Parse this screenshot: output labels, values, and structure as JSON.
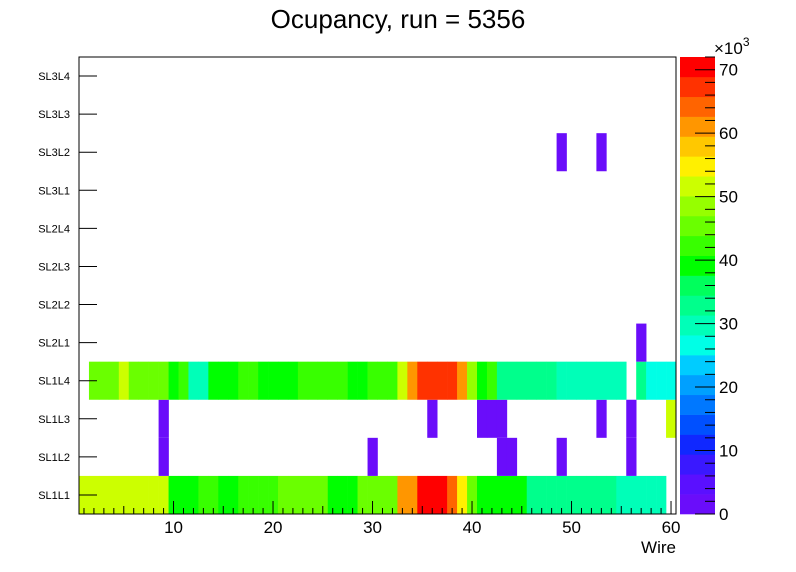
{
  "chart_data": {
    "type": "heatmap",
    "title": "Ocupancy, run = 5356",
    "xlabel": "Wire",
    "ylabel": "",
    "xlim": [
      0.5,
      60.5
    ],
    "xticks": [
      "10",
      "20",
      "30",
      "40",
      "50",
      "60"
    ],
    "xtick_values": [
      10,
      20,
      30,
      40,
      50,
      60
    ],
    "y_categories": [
      "SL1L1",
      "SL1L2",
      "SL1L3",
      "SL1L4",
      "SL2L1",
      "SL2L2",
      "SL2L3",
      "SL2L4",
      "SL3L1",
      "SL3L2",
      "SL3L3",
      "SL3L4"
    ],
    "zlim": [
      0,
      72000
    ],
    "zticks": [
      "0",
      "10",
      "20",
      "30",
      "40",
      "50",
      "60",
      "70"
    ],
    "ztick_values": [
      0,
      10000,
      20000,
      30000,
      40000,
      50000,
      60000,
      70000
    ],
    "z_exponent_base": "×10",
    "z_exponent_power": "3",
    "palette": [
      "#6a0dfa",
      "#5a10ff",
      "#3a18ff",
      "#1028ff",
      "#0050ff",
      "#0078ff",
      "#00a0ff",
      "#00ccff",
      "#00ffe6",
      "#00ffb8",
      "#00ff8c",
      "#00ff5c",
      "#00ff00",
      "#38ff00",
      "#6aff00",
      "#96ff00",
      "#ccff00",
      "#fff000",
      "#ffc800",
      "#ff9600",
      "#ff6400",
      "#ff3200",
      "#ff0000"
    ],
    "rows": [
      {
        "layer": "SL1L1",
        "values": [
          51000,
          51000,
          51000,
          51000,
          51000,
          51000,
          51000,
          51000,
          53000,
          40000,
          40000,
          40000,
          42000,
          42000,
          40000,
          40000,
          42000,
          42000,
          42000,
          42000,
          45000,
          45000,
          45000,
          45000,
          45000,
          40000,
          40000,
          40000,
          45000,
          45000,
          45000,
          45000,
          60000,
          62000,
          70000,
          70000,
          70000,
          65000,
          55000,
          45000,
          40000,
          40000,
          40000,
          38000,
          38000,
          33000,
          33000,
          33000,
          33000,
          33000,
          33000,
          33000,
          33000,
          33000,
          30000,
          30000,
          30000,
          30000,
          30000,
          null
        ]
      },
      {
        "layer": "SL1L2",
        "values": [
          null,
          null,
          null,
          null,
          null,
          null,
          null,
          null,
          3,
          null,
          null,
          null,
          null,
          null,
          null,
          null,
          null,
          null,
          null,
          null,
          null,
          null,
          null,
          null,
          null,
          null,
          null,
          null,
          null,
          3,
          null,
          null,
          null,
          null,
          null,
          null,
          null,
          null,
          null,
          null,
          null,
          null,
          3,
          3,
          null,
          null,
          null,
          null,
          3,
          null,
          null,
          null,
          null,
          null,
          null,
          3,
          null,
          null,
          null,
          null
        ]
      },
      {
        "layer": "SL1L3",
        "values": [
          null,
          null,
          null,
          null,
          null,
          null,
          null,
          null,
          3,
          null,
          null,
          null,
          null,
          null,
          null,
          null,
          null,
          null,
          null,
          null,
          null,
          null,
          null,
          null,
          null,
          null,
          null,
          null,
          null,
          null,
          null,
          null,
          null,
          null,
          null,
          3,
          null,
          null,
          null,
          null,
          3,
          3,
          3,
          null,
          null,
          null,
          null,
          null,
          null,
          null,
          null,
          null,
          3,
          null,
          null,
          3,
          null,
          null,
          null,
          52000
        ]
      },
      {
        "layer": "SL1L4",
        "values": [
          null,
          45000,
          45000,
          45000,
          51000,
          45000,
          45000,
          45000,
          45000,
          40000,
          42000,
          30000,
          30000,
          40000,
          40000,
          40000,
          42000,
          42000,
          40000,
          40000,
          40000,
          40000,
          42000,
          42000,
          42000,
          42000,
          42000,
          40000,
          40000,
          42000,
          42000,
          42000,
          51000,
          62000,
          68000,
          68000,
          68000,
          68000,
          62000,
          50000,
          40000,
          42000,
          33000,
          33000,
          33000,
          33000,
          33000,
          33000,
          30000,
          30000,
          30000,
          30000,
          30000,
          30000,
          30000,
          null,
          33000,
          28000,
          28000,
          28000
        ]
      },
      {
        "layer": "SL2L1",
        "values": [
          null,
          null,
          null,
          null,
          null,
          null,
          null,
          null,
          null,
          null,
          null,
          null,
          null,
          null,
          null,
          null,
          null,
          null,
          null,
          null,
          null,
          null,
          null,
          null,
          null,
          null,
          null,
          null,
          null,
          null,
          null,
          null,
          null,
          null,
          null,
          null,
          null,
          null,
          null,
          null,
          null,
          null,
          null,
          null,
          null,
          null,
          null,
          null,
          null,
          null,
          null,
          null,
          null,
          null,
          null,
          null,
          3,
          null,
          null,
          null
        ]
      },
      {
        "layer": "SL2L2",
        "values": []
      },
      {
        "layer": "SL2L3",
        "values": []
      },
      {
        "layer": "SL2L4",
        "values": []
      },
      {
        "layer": "SL3L1",
        "values": []
      },
      {
        "layer": "SL3L2",
        "values": [
          null,
          null,
          null,
          null,
          null,
          null,
          null,
          null,
          null,
          null,
          null,
          null,
          null,
          null,
          null,
          null,
          null,
          null,
          null,
          null,
          null,
          null,
          null,
          null,
          null,
          null,
          null,
          null,
          null,
          null,
          null,
          null,
          null,
          null,
          null,
          null,
          null,
          null,
          null,
          null,
          null,
          null,
          null,
          null,
          null,
          null,
          null,
          null,
          3,
          null,
          null,
          null,
          3,
          null,
          null,
          null,
          null,
          null,
          null,
          null
        ]
      },
      {
        "layer": "SL3L3",
        "values": []
      },
      {
        "layer": "SL3L4",
        "values": []
      }
    ]
  }
}
